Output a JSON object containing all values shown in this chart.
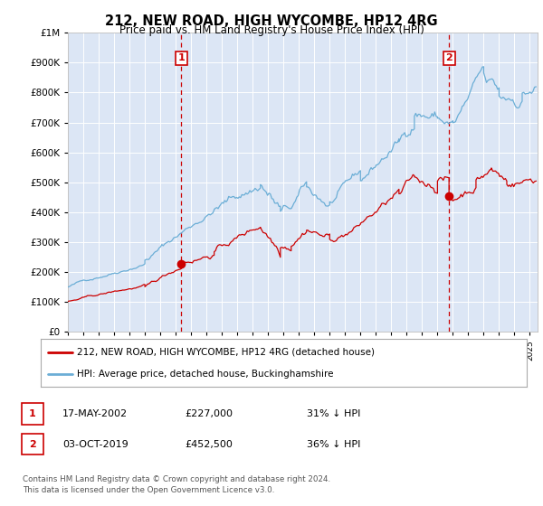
{
  "title": "212, NEW ROAD, HIGH WYCOMBE, HP12 4RG",
  "subtitle": "Price paid vs. HM Land Registry's House Price Index (HPI)",
  "legend_line1": "212, NEW ROAD, HIGH WYCOMBE, HP12 4RG (detached house)",
  "legend_line2": "HPI: Average price, detached house, Buckinghamshire",
  "annotation1": {
    "label": "1",
    "date": "17-MAY-2002",
    "price": "£227,000",
    "pct": "31% ↓ HPI",
    "x_year": 2002.37
  },
  "annotation2": {
    "label": "2",
    "date": "03-OCT-2019",
    "price": "£452,500",
    "pct": "36% ↓ HPI",
    "x_year": 2019.75
  },
  "footnote1": "Contains HM Land Registry data © Crown copyright and database right 2024.",
  "footnote2": "This data is licensed under the Open Government Licence v3.0.",
  "hpi_color": "#6baed6",
  "sale_color": "#cc0000",
  "vline_color": "#cc0000",
  "bg_color": "#dce6f5",
  "ylim": [
    0,
    1000000
  ],
  "xlim_start": 1995.0,
  "xlim_end": 2025.5,
  "sale1_year": 2002.37,
  "sale1_price": 227000,
  "sale2_year": 2019.75,
  "sale2_price": 452500
}
